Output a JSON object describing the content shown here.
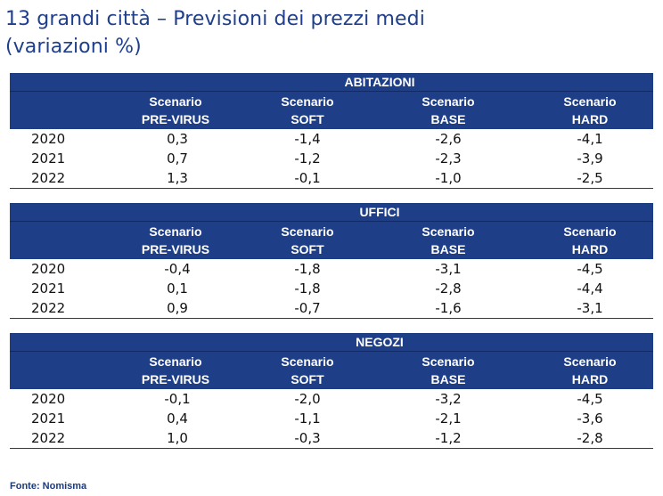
{
  "title": {
    "line1": "13 grandi città – Previsioni dei prezzi medi",
    "line2": "(variazioni %)"
  },
  "columns": [
    {
      "line1": "Scenario",
      "line2": "PRE-VIRUS"
    },
    {
      "line1": "Scenario",
      "line2": "SOFT"
    },
    {
      "line1": "Scenario",
      "line2": "BASE"
    },
    {
      "line1": "Scenario",
      "line2": "HARD"
    }
  ],
  "sections": [
    {
      "name": "ABITAZIONI",
      "rows": [
        {
          "year": "2020",
          "values": [
            "0,3",
            "-1,4",
            "-2,6",
            "-4,1"
          ]
        },
        {
          "year": "2021",
          "values": [
            "0,7",
            "-1,2",
            "-2,3",
            "-3,9"
          ]
        },
        {
          "year": "2022",
          "values": [
            "1,3",
            "-0,1",
            "-1,0",
            "-2,5"
          ]
        }
      ]
    },
    {
      "name": "UFFICI",
      "rows": [
        {
          "year": "2020",
          "values": [
            "-0,4",
            "-1,8",
            "-3,1",
            "-4,5"
          ]
        },
        {
          "year": "2021",
          "values": [
            "0,1",
            "-1,8",
            "-2,8",
            "-4,4"
          ]
        },
        {
          "year": "2022",
          "values": [
            "0,9",
            "-0,7",
            "-1,6",
            "-3,1"
          ]
        }
      ]
    },
    {
      "name": "NEGOZI",
      "rows": [
        {
          "year": "2020",
          "values": [
            "-0,1",
            "-2,0",
            "-3,2",
            "-4,5"
          ]
        },
        {
          "year": "2021",
          "values": [
            "0,4",
            "-1,1",
            "-2,1",
            "-3,6"
          ]
        },
        {
          "year": "2022",
          "values": [
            "1,0",
            "-0,3",
            "-1,2",
            "-2,8"
          ]
        }
      ]
    }
  ],
  "source": "Fonte: Nomisma",
  "colors": {
    "header_bg": "#1e3f88",
    "title": "#1f3f8c"
  }
}
